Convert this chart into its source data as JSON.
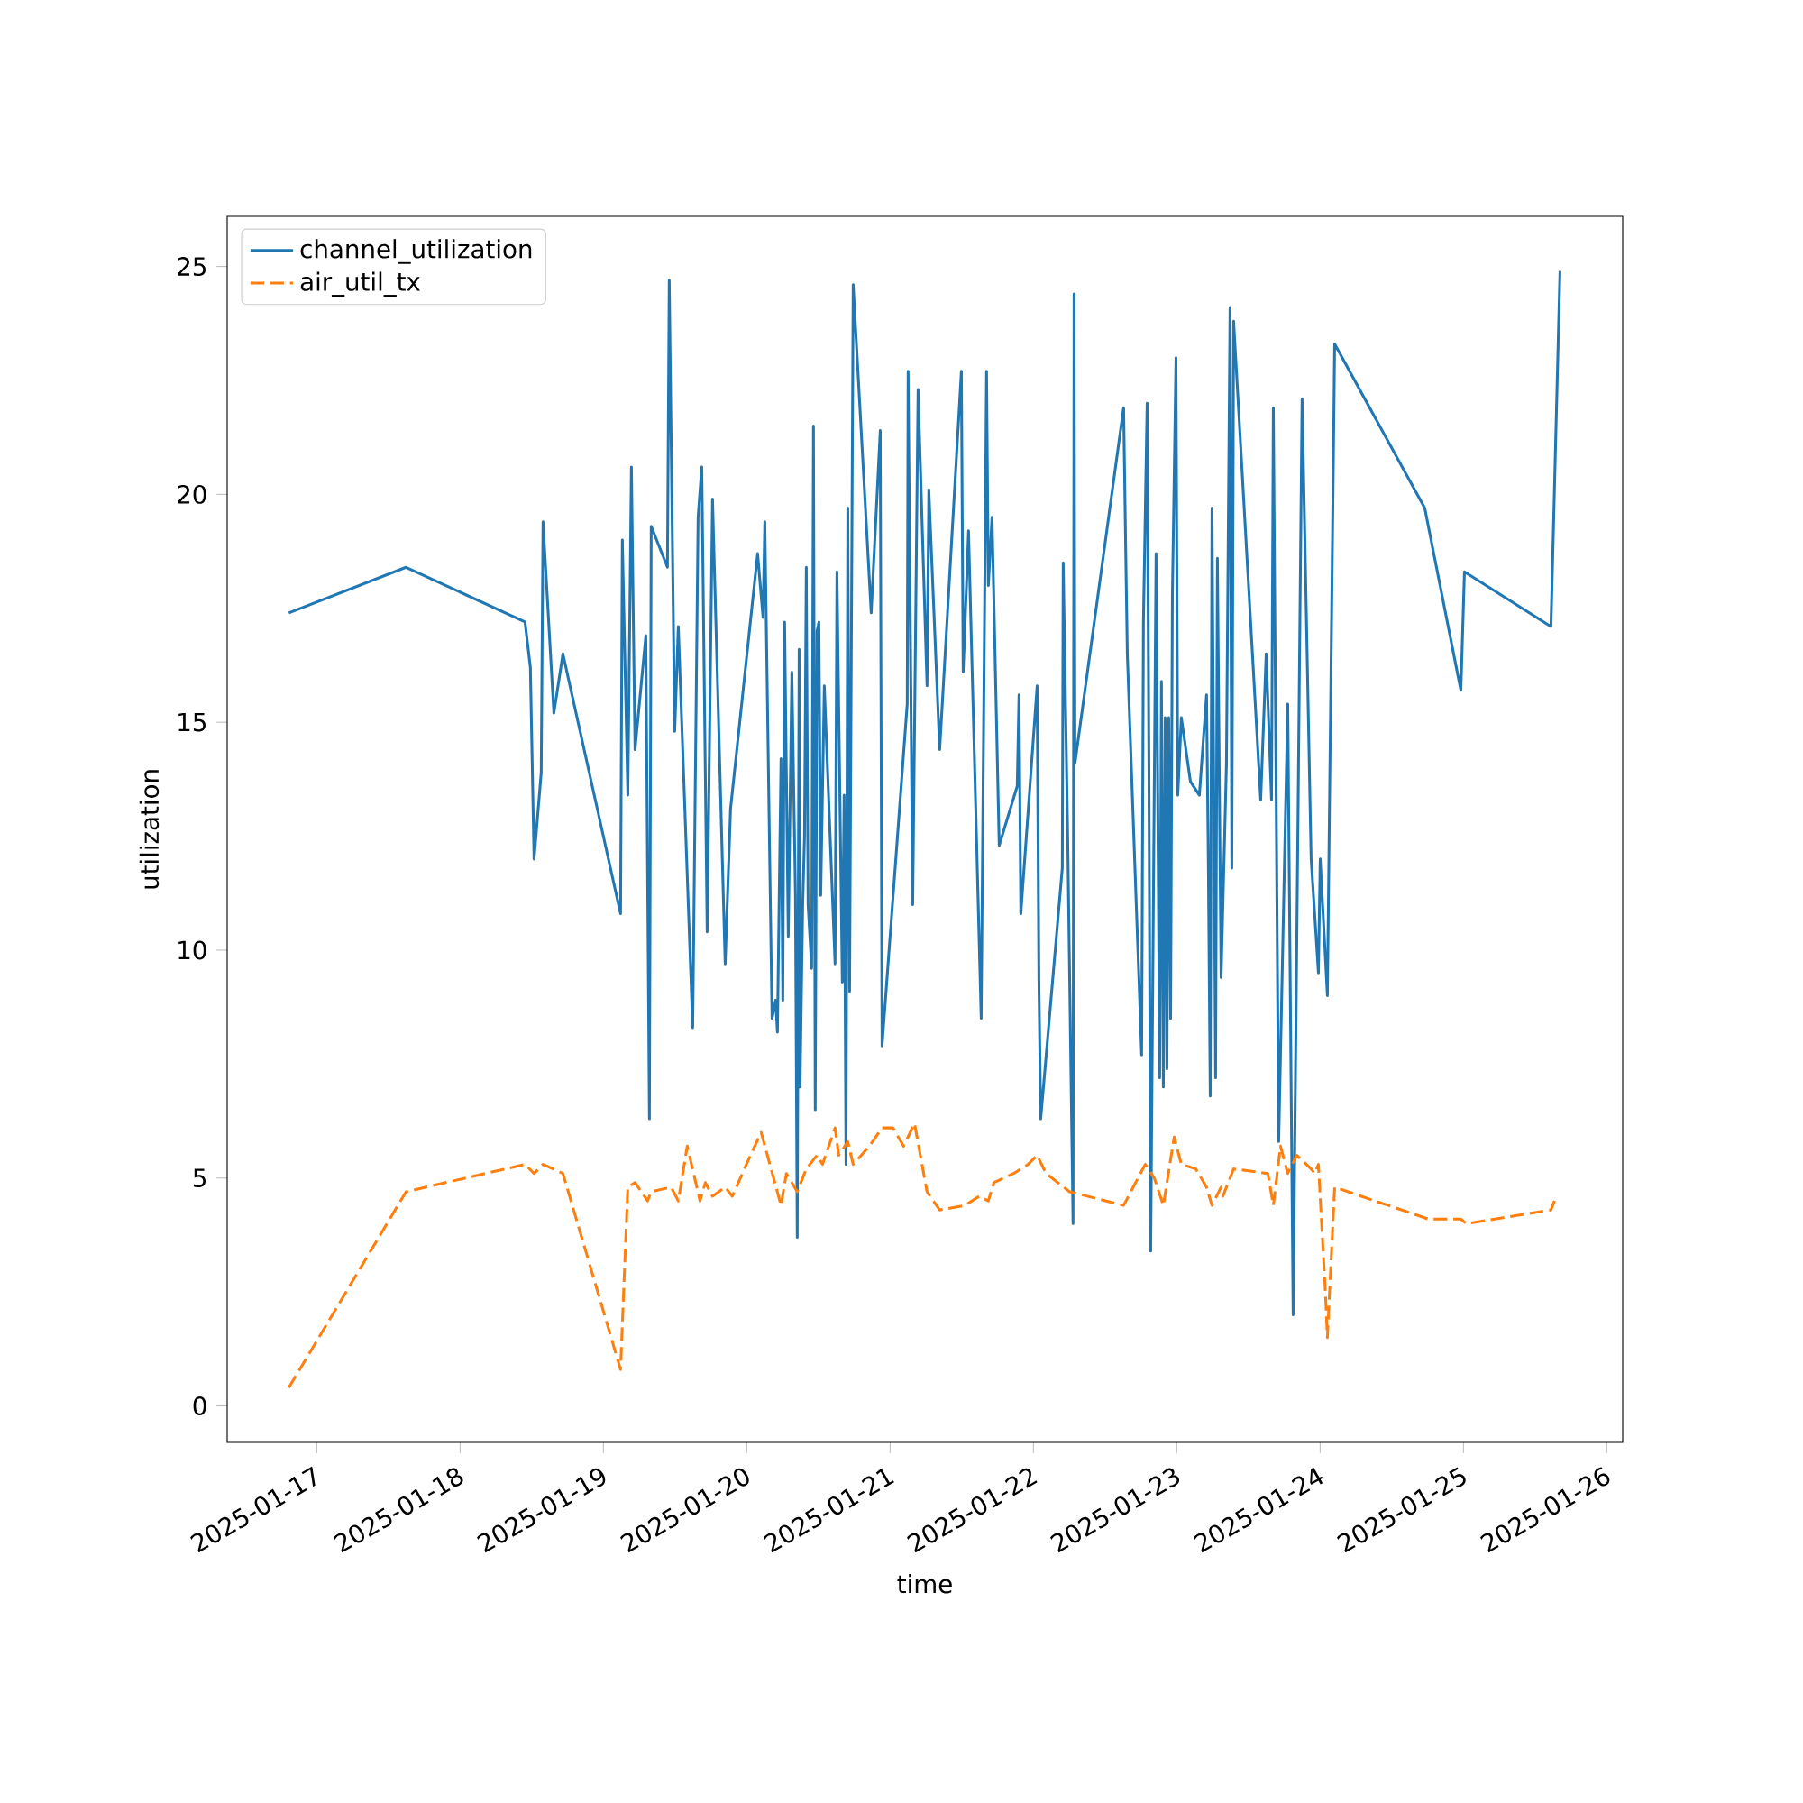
{
  "chart_data": {
    "type": "line",
    "xlabel": "time",
    "ylabel": "utilization",
    "legend": "top left",
    "xlim": [
      "2025-01-16T09:00",
      "2025-01-26T02:40"
    ],
    "ylim": [
      -0.8,
      26.1
    ],
    "xticks": [
      "2025-01-17",
      "2025-01-18",
      "2025-01-19",
      "2025-01-20",
      "2025-01-21",
      "2025-01-22",
      "2025-01-23",
      "2025-01-24",
      "2025-01-25",
      "2025-01-26"
    ],
    "yticks": [
      0,
      5,
      10,
      15,
      20,
      25
    ],
    "series": [
      {
        "name": "channel_utilization",
        "color": "#1f77b4",
        "line_style": "solid",
        "x": [
          "2025-01-16T19:19",
          "2025-01-17T14:57",
          "2025-01-18T10:52",
          "2025-01-18T11:46",
          "2025-01-18T12:23",
          "2025-01-18T13:35",
          "2025-01-18T13:53",
          "2025-01-18T15:42",
          "2025-01-18T17:13",
          "2025-01-19T02:52",
          "2025-01-19T03:10",
          "2025-01-19T04:05",
          "2025-01-19T04:41",
          "2025-01-19T05:17",
          "2025-01-19T07:06",
          "2025-01-19T07:42",
          "2025-01-19T08:00",
          "2025-01-19T10:43",
          "2025-01-19T11:01",
          "2025-01-19T11:56",
          "2025-01-19T12:32",
          "2025-01-19T14:57",
          "2025-01-19T15:51",
          "2025-01-19T16:28",
          "2025-01-19T17:22",
          "2025-01-19T18:16",
          "2025-01-19T20:23",
          "2025-01-19T21:17",
          "2025-01-20T01:49",
          "2025-01-20T02:43",
          "2025-01-20T03:01",
          "2025-01-20T04:14",
          "2025-01-20T04:50",
          "2025-01-20T05:08",
          "2025-01-20T05:44",
          "2025-01-20T06:02",
          "2025-01-20T06:20",
          "2025-01-20T06:57",
          "2025-01-20T07:33",
          "2025-01-20T08:09",
          "2025-01-20T08:27",
          "2025-01-20T08:46",
          "2025-01-20T08:55",
          "2025-01-20T09:22",
          "2025-01-20T09:40",
          "2025-01-20T09:58",
          "2025-01-20T10:16",
          "2025-01-20T10:52",
          "2025-01-20T11:10",
          "2025-01-20T11:28",
          "2025-01-20T11:46",
          "2025-01-20T12:05",
          "2025-01-20T12:23",
          "2025-01-20T12:59",
          "2025-01-20T14:47",
          "2025-01-20T15:06",
          "2025-01-20T16:00",
          "2025-01-20T16:18",
          "2025-01-20T16:37",
          "2025-01-20T16:55",
          "2025-01-20T17:13",
          "2025-01-20T17:49",
          "2025-01-20T20:50",
          "2025-01-20T22:21",
          "2025-01-20T22:39",
          "2025-01-21T02:52",
          "2025-01-21T03:01",
          "2025-01-21T03:47",
          "2025-01-21T04:41",
          "2025-01-21T06:11",
          "2025-01-21T06:29",
          "2025-01-21T08:18",
          "2025-01-21T11:56",
          "2025-01-21T12:14",
          "2025-01-21T13:08",
          "2025-01-21T15:15",
          "2025-01-21T16:09",
          "2025-01-21T16:27",
          "2025-01-21T17:04",
          "2025-01-21T18:16",
          "2025-01-21T21:17",
          "2025-01-21T21:35",
          "2025-01-21T21:53",
          "2025-01-22T00:37",
          "2025-01-22T00:55",
          "2025-01-22T01:13",
          "2025-01-22T04:50",
          "2025-01-22T04:59",
          "2025-01-22T05:44",
          "2025-01-22T06:38",
          "2025-01-22T06:48",
          "2025-01-22T06:57",
          "2025-01-22T15:06",
          "2025-01-22T15:24",
          "2025-01-22T15:43",
          "2025-01-22T18:07",
          "2025-01-22T18:25",
          "2025-01-22T19:02",
          "2025-01-22T19:20",
          "2025-01-22T19:38",
          "2025-01-22T20:32",
          "2025-01-22T21:08",
          "2025-01-22T21:26",
          "2025-01-22T21:45",
          "2025-01-22T22:03",
          "2025-01-22T22:21",
          "2025-01-22T22:39",
          "2025-01-22T22:58",
          "2025-01-22T23:16",
          "2025-01-22T23:52",
          "2025-01-23T00:10",
          "2025-01-23T00:46",
          "2025-01-23T02:17",
          "2025-01-23T03:47",
          "2025-01-23T04:59",
          "2025-01-23T05:17",
          "2025-01-23T05:36",
          "2025-01-23T05:54",
          "2025-01-23T06:30",
          "2025-01-23T06:48",
          "2025-01-23T07:25",
          "2025-01-23T08:19",
          "2025-01-23T08:55",
          "2025-01-23T09:13",
          "2025-01-23T09:31",
          "2025-01-23T14:03",
          "2025-01-23T14:58",
          "2025-01-23T15:52",
          "2025-01-23T16:10",
          "2025-01-23T17:04",
          "2025-01-23T18:35",
          "2025-01-23T19:29",
          "2025-01-23T20:59",
          "2025-01-23T22:30",
          "2025-01-23T23:43",
          "2025-01-24T00:01",
          "2025-01-24T01:13",
          "2025-01-24T02:26",
          "2025-01-24T17:31",
          "2025-01-24T23:34",
          "2025-01-25T00:10",
          "2025-01-25T14:39",
          "2025-01-25T16:10"
        ],
        "values": [
          17.4,
          18.4,
          17.2,
          16.2,
          12.0,
          13.9,
          19.4,
          15.2,
          16.5,
          10.8,
          19.0,
          13.4,
          20.6,
          14.4,
          16.9,
          6.3,
          19.3,
          18.4,
          24.7,
          14.8,
          17.1,
          8.3,
          19.5,
          20.6,
          10.4,
          19.9,
          9.7,
          13.1,
          18.7,
          17.3,
          19.4,
          8.5,
          8.9,
          8.2,
          14.2,
          8.9,
          17.2,
          10.3,
          16.1,
          11.2,
          3.7,
          16.6,
          7.0,
          11.0,
          12.5,
          18.4,
          11.0,
          9.6,
          21.5,
          6.5,
          17.0,
          17.2,
          11.2,
          15.8,
          9.7,
          18.3,
          9.3,
          13.4,
          5.3,
          19.7,
          9.1,
          24.6,
          17.4,
          21.4,
          7.9,
          15.4,
          22.7,
          11.0,
          22.3,
          15.8,
          20.1,
          14.4,
          22.7,
          16.1,
          19.2,
          8.5,
          22.7,
          18.0,
          19.5,
          12.3,
          13.6,
          15.6,
          10.8,
          15.8,
          9.3,
          6.3,
          11.8,
          18.5,
          12.5,
          4.0,
          24.4,
          14.1,
          21.9,
          19.2,
          16.5,
          7.7,
          17.2,
          22.0,
          14.1,
          3.4,
          18.7,
          7.2,
          15.9,
          7.0,
          15.1,
          7.4,
          15.1,
          8.5,
          17.8,
          23.0,
          13.4,
          15.1,
          13.7,
          13.4,
          15.6,
          11.9,
          6.8,
          19.7,
          7.2,
          18.6,
          9.4,
          14.1,
          24.1,
          11.8,
          23.8,
          13.3,
          16.5,
          13.3,
          21.9,
          5.8,
          15.4,
          2.0,
          22.1,
          12.0,
          9.5,
          12.0,
          9.0,
          23.3,
          19.7,
          15.7,
          18.3,
          17.1,
          24.9
        ]
      },
      {
        "name": "air_util_tx",
        "color": "#ff7f0e",
        "line_style": "dashed",
        "x": [
          "2025-01-16T19:19",
          "2025-01-17T14:57",
          "2025-01-18T10:52",
          "2025-01-18T12:23",
          "2025-01-18T13:53",
          "2025-01-18T17:13",
          "2025-01-19T02:52",
          "2025-01-19T04:05",
          "2025-01-19T05:17",
          "2025-01-19T07:24",
          "2025-01-19T08:00",
          "2025-01-19T11:19",
          "2025-01-19T12:32",
          "2025-01-19T14:02",
          "2025-01-19T16:10",
          "2025-01-19T17:04",
          "2025-01-19T18:16",
          "2025-01-19T20:23",
          "2025-01-19T21:35",
          "2025-01-20T00:37",
          "2025-01-20T02:25",
          "2025-01-20T05:44",
          "2025-01-20T06:38",
          "2025-01-20T08:27",
          "2025-01-20T09:58",
          "2025-01-20T11:46",
          "2025-01-20T12:41",
          "2025-01-20T14:47",
          "2025-01-20T15:24",
          "2025-01-20T16:55",
          "2025-01-20T17:49",
          "2025-01-20T20:32",
          "2025-01-20T22:39",
          "2025-01-21T00:28",
          "2025-01-21T02:16",
          "2025-01-21T04:05",
          "2025-01-21T06:11",
          "2025-01-21T08:18",
          "2025-01-21T12:32",
          "2025-01-21T14:56",
          "2025-01-21T16:27",
          "2025-01-21T17:22",
          "2025-01-21T20:41",
          "2025-01-21T23:06",
          "2025-01-22T00:37",
          "2025-01-22T02:07",
          "2025-01-22T06:03",
          "2025-01-22T15:06",
          "2025-01-22T18:43",
          "2025-01-22T20:14",
          "2025-01-22T21:45",
          "2025-01-22T23:34",
          "2025-01-23T00:46",
          "2025-01-23T03:11",
          "2025-01-23T04:59",
          "2025-01-23T05:54",
          "2025-01-23T07:25",
          "2025-01-23T07:43",
          "2025-01-23T09:31",
          "2025-01-23T15:15",
          "2025-01-23T16:10",
          "2025-01-23T17:22",
          "2025-01-23T18:35",
          "2025-01-23T20:05",
          "2025-01-23T22:30",
          "2025-01-23T23:06",
          "2025-01-23T23:43",
          "2025-01-24T00:55",
          "2025-01-24T01:13",
          "2025-01-24T02:26",
          "2025-01-24T18:08",
          "2025-01-24T23:34",
          "2025-01-25T00:28",
          "2025-01-25T14:39",
          "2025-01-25T15:15"
        ],
        "values": [
          0.4,
          4.7,
          5.3,
          5.1,
          5.3,
          5.1,
          0.8,
          4.8,
          4.9,
          4.5,
          4.7,
          4.8,
          4.5,
          5.7,
          4.5,
          4.9,
          4.6,
          4.8,
          4.6,
          5.5,
          6.0,
          4.4,
          5.1,
          4.7,
          5.2,
          5.5,
          5.3,
          6.1,
          5.5,
          5.8,
          5.3,
          5.7,
          6.1,
          6.1,
          5.7,
          6.2,
          4.7,
          4.3,
          4.4,
          4.6,
          4.5,
          4.9,
          5.1,
          5.3,
          5.5,
          5.1,
          4.7,
          4.4,
          5.3,
          5.0,
          4.4,
          5.9,
          5.3,
          5.2,
          4.8,
          4.4,
          4.8,
          4.6,
          5.2,
          5.1,
          4.4,
          5.7,
          5.1,
          5.5,
          5.2,
          5.1,
          5.3,
          2.4,
          1.5,
          4.8,
          4.1,
          4.1,
          4.0,
          4.3,
          4.5
        ]
      }
    ]
  }
}
